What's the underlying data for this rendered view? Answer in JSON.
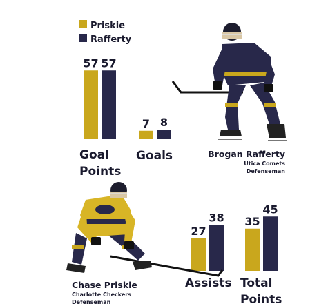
{
  "colors": {
    "priskie": "#c9a71d",
    "rafferty": "#28284a",
    "text": "#1a1a2e"
  },
  "legend": {
    "priskie": "Priskie",
    "rafferty": "Rafferty"
  },
  "players": {
    "rafferty": {
      "name": "Brogan Rafferty",
      "team": "Utica Comets",
      "position": "Defenseman",
      "photo": "hockey-player-photo-rafferty"
    },
    "priskie": {
      "name": "Chase Priskie",
      "team": "Charlotte Checkers",
      "position": "Defenseman",
      "photo": "hockey-player-photo-priskie"
    }
  },
  "chart_data": {
    "type": "bar",
    "categories": [
      "Goal Points",
      "Goals",
      "Assists",
      "Total Points"
    ],
    "category_lines": [
      [
        "Goal",
        "Points"
      ],
      [
        "Goals"
      ],
      [
        "Assists"
      ],
      [
        "Total",
        "Points"
      ]
    ],
    "series": [
      {
        "name": "Priskie",
        "values": [
          57,
          7,
          27,
          35
        ]
      },
      {
        "name": "Rafferty",
        "values": [
          57,
          8,
          38,
          45
        ]
      }
    ],
    "grid": false,
    "legend_position": "top-left"
  }
}
